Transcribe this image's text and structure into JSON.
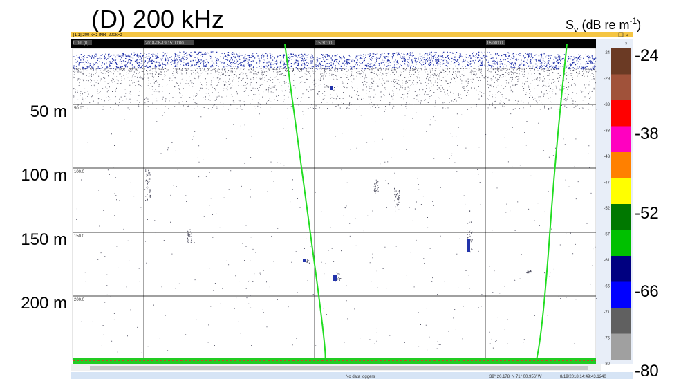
{
  "figure": {
    "title": "(D) 200 kHz",
    "unit": {
      "symbol": "S",
      "subscript": "v",
      "text": " (dB re m",
      "superscript": "-1",
      "close": ")"
    }
  },
  "depth_labels": [
    "50 m",
    "100 m",
    "150 m",
    "200 m"
  ],
  "scale_labels": [
    "-24",
    "-38",
    "-52",
    "-66",
    "-80"
  ],
  "window": {
    "title": "[1:1] 200 kHz INR_200kHz",
    "time_labels": [
      "0.0m (0)",
      "2018-08-19 15:00:00",
      "15:30:00",
      "16:00:00"
    ],
    "depth_ticks": [
      "50.0",
      "100.0",
      "150.0",
      "200.0"
    ],
    "colorbar_labels": [
      "-24",
      "-29",
      "-33",
      "-38",
      "-43",
      "-47",
      "-52",
      "-57",
      "-61",
      "-66",
      "-71",
      "-75",
      "-80"
    ]
  },
  "status_bar": {
    "loggers": "No data loggers",
    "position": "39° 20.178' N 71° 00.956' W",
    "timestamp": "8/19/2018 14:49:43.1240"
  }
}
